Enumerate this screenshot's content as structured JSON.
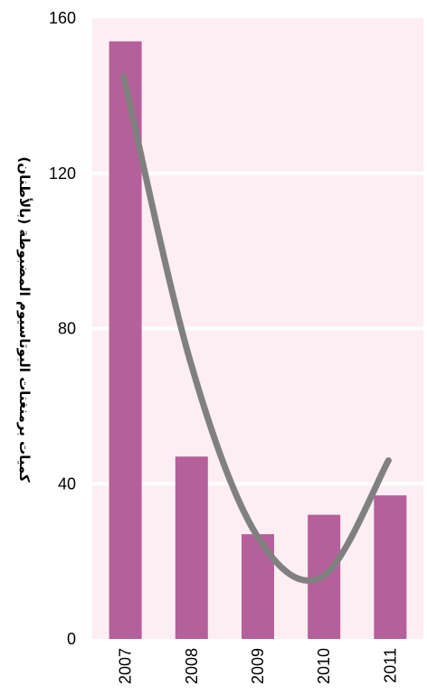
{
  "chart_data": {
    "type": "bar",
    "title": "",
    "xlabel": "",
    "ylabel": "كميات برمنغنات البوتاسيوم المضبوطة (بالأطنان)",
    "categories": [
      "2007",
      "2008",
      "2009",
      "2010",
      "2011"
    ],
    "values": [
      154,
      47,
      27,
      32,
      37
    ],
    "ylim": [
      0,
      160
    ],
    "yticks": [
      0,
      40,
      80,
      120,
      160
    ],
    "trendline": {
      "type": "polynomial",
      "values": [
        145,
        72,
        27,
        16,
        46
      ]
    },
    "grid": true,
    "legend": "none",
    "colors": {
      "bar": "#b5609a",
      "trendline": "#808080",
      "plot_background": "#fdeef3",
      "gridline": "#ffffff"
    }
  }
}
